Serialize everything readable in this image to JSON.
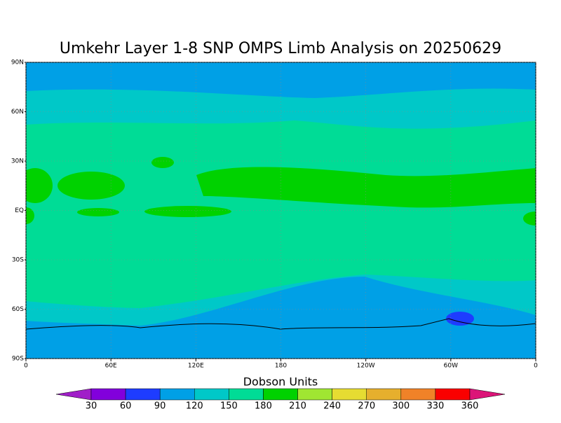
{
  "chart_data": {
    "type": "map",
    "title": "Umkehr Layer 1-8 SNP OMPS Limb Analysis on 20250629",
    "xlim": [
      0,
      360
    ],
    "xticks": [
      0,
      {
        "value": 60,
        "label": "60E"
      },
      {
        "value": 120,
        "label": "120E"
      },
      180,
      {
        "value": 240,
        "label": "120W"
      },
      {
        "value": 300,
        "label": "60W"
      },
      {
        "value": 360,
        "label": "0"
      }
    ],
    "ylim": [
      -90,
      90
    ],
    "yticks": [
      {
        "value": 90,
        "label": "90N"
      },
      {
        "value": 60,
        "label": "60N"
      },
      {
        "value": 30,
        "label": "30N"
      },
      {
        "value": 0,
        "label": "EQ"
      },
      {
        "value": -30,
        "label": "30S"
      },
      {
        "value": -60,
        "label": "60S"
      },
      {
        "value": -90,
        "label": "90S"
      }
    ],
    "grid": true,
    "legend": {
      "title": "Dobson Units",
      "levels": [
        30,
        60,
        90,
        120,
        150,
        180,
        210,
        240,
        270,
        300,
        330,
        360
      ],
      "colors": [
        "#a01ec8",
        "#8200dc",
        "#1e3cff",
        "#00a0e6",
        "#00c8c8",
        "#00dc96",
        "#00d200",
        "#a0e632",
        "#e6dc32",
        "#e6af2d",
        "#f08228",
        "#fa0000",
        "#dc1478"
      ]
    }
  }
}
